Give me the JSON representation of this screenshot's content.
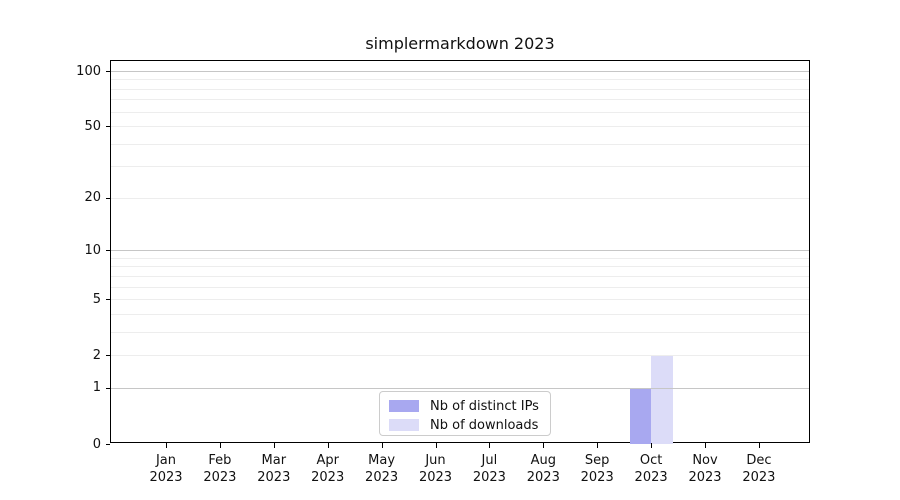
{
  "figure": {
    "title": "simplermarkdown 2023"
  },
  "chart_data": {
    "type": "bar",
    "title": "simplermarkdown 2023",
    "categories": [
      "Jan",
      "Feb",
      "Mar",
      "Apr",
      "May",
      "Jun",
      "Jul",
      "Aug",
      "Sep",
      "Oct",
      "Nov",
      "Dec"
    ],
    "category_year": "2023",
    "series": [
      {
        "name": "Nb of distinct IPs",
        "color": "#a8a8f0",
        "values": [
          0,
          0,
          0,
          0,
          0,
          0,
          0,
          0,
          0,
          1,
          0,
          0
        ]
      },
      {
        "name": "Nb of downloads",
        "color": "#dcdcf8",
        "values": [
          0,
          0,
          0,
          0,
          0,
          0,
          0,
          0,
          0,
          2,
          0,
          0
        ]
      }
    ],
    "xlabel": "",
    "ylabel": "",
    "y_axis": {
      "scale": "log1p",
      "tick_values": [
        0,
        1,
        2,
        5,
        10,
        20,
        50,
        100
      ],
      "tick_labels": [
        "0",
        "1",
        "2",
        "5",
        "10",
        "20",
        "50",
        "100"
      ],
      "major_grid_values": [
        1,
        10,
        100
      ],
      "minor_grid_values": [
        2,
        3,
        4,
        5,
        6,
        7,
        8,
        9,
        20,
        30,
        40,
        50,
        60,
        70,
        80,
        90
      ],
      "range_top_value": 113
    },
    "grid": true,
    "legend_position": "inside-bottom-center"
  },
  "colors": {
    "background": "#ffffff",
    "spine": "#000000",
    "text": "#111111",
    "major_grid": "#c6c6c6",
    "minor_grid": "#ededed",
    "legend_border": "#cccccc",
    "bar_distinct_ips": "#a8a8f0",
    "bar_downloads": "#dcdcf8"
  }
}
